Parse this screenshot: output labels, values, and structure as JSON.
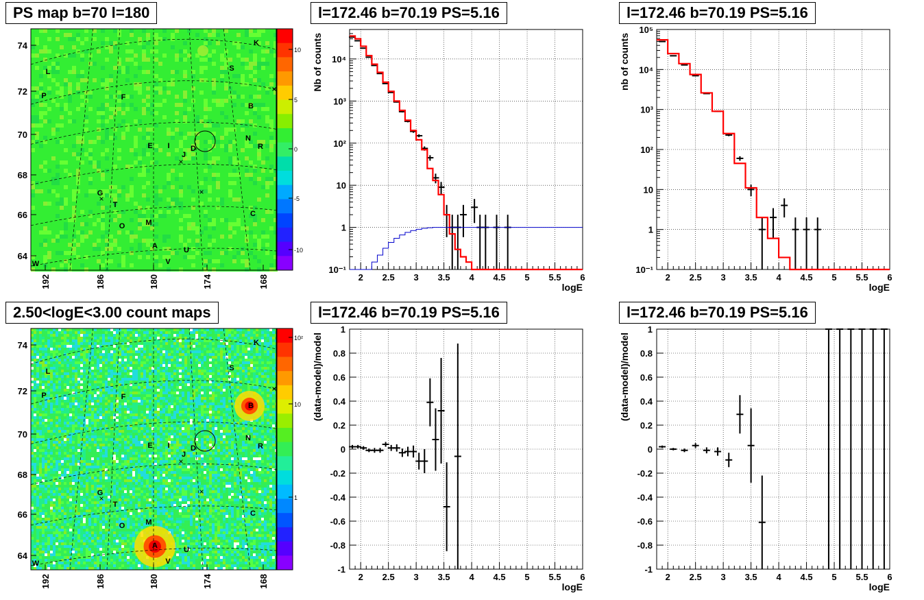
{
  "titles": {
    "ps_map": "PS map b=70 l=180",
    "count_map": "2.50<logE<3.00 count maps",
    "spec_left": "l=172.46 b=70.19 PS=5.16",
    "spec_right": "l=172.46 b=70.19 PS=5.16",
    "resid_left": "l=172.46 b=70.19 PS=5.16",
    "resid_right": "l=172.46 b=70.19 PS=5.16"
  },
  "map_axes": {
    "lat_ticks": [
      "64",
      "66",
      "68",
      "70",
      "72",
      "74"
    ],
    "lon_ticks": [
      "192",
      "186",
      "180",
      "174",
      "168"
    ],
    "ps_colorbar_ticks": [
      "10",
      "5",
      "0",
      "-5",
      "-10"
    ],
    "count_colorbar_ticks": [
      "10²",
      "10",
      "1"
    ]
  },
  "map_labels": [
    "K",
    "L",
    "S",
    "P",
    "F",
    "B",
    "N",
    "R",
    "E",
    "I",
    "J",
    "D",
    "G",
    "T",
    "C",
    "O",
    "M",
    "A",
    "U",
    "V",
    "W"
  ],
  "colors": {
    "data": "#000000",
    "model": "#ff0000",
    "aux": "#0000cc",
    "map_bg": "#33dd33",
    "source_hot": "#ff2200"
  },
  "chart_data": [
    {
      "type": "line",
      "panel": "spectrum-left",
      "title": "l=172.46 b=70.19 PS=5.16",
      "xlabel": "logE",
      "ylabel": "Nb of counts",
      "xlim": [
        1.8,
        6
      ],
      "ylim": [
        0.1,
        50000
      ],
      "yscale": "log",
      "x_ticks": [
        "2",
        "2.5",
        "3",
        "3.5",
        "4",
        "4.5",
        "5",
        "5.5",
        "6"
      ],
      "y_ticks": [
        "10⁻¹",
        "1",
        "10",
        "10²",
        "10³",
        "10⁴"
      ],
      "grid": true,
      "series": [
        {
          "kind": "data",
          "x": [
            1.85,
            1.95,
            2.05,
            2.15,
            2.25,
            2.35,
            2.45,
            2.55,
            2.65,
            2.75,
            2.85,
            2.95,
            3.05,
            3.15,
            3.25,
            3.35,
            3.45,
            3.55,
            3.65,
            3.75,
            3.85,
            4.05,
            4.15,
            4.25,
            4.45,
            4.65
          ],
          "y": [
            33000,
            27000,
            18000,
            11000,
            7000,
            4500,
            2600,
            1600,
            950,
            560,
            330,
            190,
            150,
            75,
            45,
            15,
            9,
            2,
            1,
            1,
            2,
            3,
            1,
            1,
            1,
            1
          ]
        },
        {
          "kind": "model",
          "x": [
            1.8,
            1.9,
            2.0,
            2.1,
            2.2,
            2.3,
            2.4,
            2.5,
            2.6,
            2.7,
            2.8,
            2.9,
            3.0,
            3.1,
            3.2,
            3.3,
            3.4,
            3.5,
            3.6,
            3.7,
            3.8,
            3.9,
            4.0,
            4.1,
            6.0
          ],
          "y": [
            35000,
            30000,
            20000,
            12000,
            7500,
            4800,
            2800,
            1700,
            1000,
            600,
            350,
            200,
            120,
            70,
            25,
            13,
            6,
            2,
            0.7,
            0.3,
            0.2,
            0.15,
            0.1,
            0.1,
            0.1
          ]
        },
        {
          "kind": "aux",
          "x": [
            1.8,
            2.1,
            2.2,
            2.3,
            2.4,
            2.5,
            2.6,
            2.7,
            2.8,
            2.9,
            3.0,
            3.1,
            3.2,
            3.3,
            3.5,
            4.0,
            6.0
          ],
          "y": [
            0.1,
            0.1,
            0.15,
            0.22,
            0.32,
            0.44,
            0.55,
            0.66,
            0.76,
            0.84,
            0.9,
            0.95,
            0.98,
            1.0,
            1.0,
            1.0,
            1.0
          ]
        }
      ]
    },
    {
      "type": "line",
      "panel": "spectrum-right",
      "title": "l=172.46 b=70.19 PS=5.16",
      "xlabel": "logE",
      "ylabel": "nb of counts",
      "xlim": [
        1.8,
        6
      ],
      "ylim": [
        0.1,
        100000
      ],
      "yscale": "log",
      "x_ticks": [
        "2",
        "2.5",
        "3",
        "3.5",
        "4",
        "4.5",
        "5",
        "5.5",
        "6"
      ],
      "y_ticks": [
        "10⁻¹",
        "1",
        "10",
        "10²",
        "10³",
        "10⁴",
        "10⁵"
      ],
      "grid": true,
      "series": [
        {
          "kind": "data",
          "x": [
            1.9,
            2.1,
            2.3,
            2.5,
            2.7,
            2.9,
            3.1,
            3.3,
            3.5,
            3.7,
            3.9,
            4.1,
            4.3,
            4.5,
            4.7
          ],
          "y": [
            50000,
            22000,
            13000,
            7000,
            2500,
            900,
            230,
            60,
            10,
            1,
            2,
            4,
            1,
            1,
            1
          ]
        },
        {
          "kind": "model",
          "x": [
            1.8,
            2.0,
            2.2,
            2.4,
            2.6,
            2.8,
            3.0,
            3.2,
            3.4,
            3.6,
            3.8,
            4.0,
            4.2,
            6.0
          ],
          "y": [
            55000,
            25000,
            14000,
            7500,
            2600,
            900,
            250,
            45,
            11,
            2,
            0.6,
            0.2,
            0.1,
            0.1
          ]
        }
      ]
    },
    {
      "type": "scatter",
      "panel": "residual-left",
      "title": "l=172.46 b=70.19 PS=5.16",
      "xlabel": "logE",
      "ylabel": "(data-model)/model",
      "xlim": [
        1.8,
        6
      ],
      "ylim": [
        -1,
        1
      ],
      "x_ticks": [
        "2",
        "2.5",
        "3",
        "3.5",
        "4",
        "4.5",
        "5",
        "5.5",
        "6"
      ],
      "y_ticks": [
        "-1",
        "-0.8",
        "-0.6",
        "-0.4",
        "-0.2",
        "0",
        "0.2",
        "0.4",
        "0.6",
        "0.8",
        "1"
      ],
      "grid": true,
      "points": [
        {
          "x": 1.85,
          "y": 0.02,
          "e": 0.015
        },
        {
          "x": 1.95,
          "y": 0.02,
          "e": 0.015
        },
        {
          "x": 2.05,
          "y": 0.01,
          "e": 0.015
        },
        {
          "x": 2.15,
          "y": -0.01,
          "e": 0.015
        },
        {
          "x": 2.25,
          "y": -0.01,
          "e": 0.02
        },
        {
          "x": 2.35,
          "y": -0.01,
          "e": 0.02
        },
        {
          "x": 2.45,
          "y": 0.04,
          "e": 0.02
        },
        {
          "x": 2.55,
          "y": 0.01,
          "e": 0.025
        },
        {
          "x": 2.65,
          "y": 0.01,
          "e": 0.03
        },
        {
          "x": 2.75,
          "y": -0.03,
          "e": 0.035
        },
        {
          "x": 2.85,
          "y": -0.02,
          "e": 0.04
        },
        {
          "x": 2.95,
          "y": -0.02,
          "e": 0.05
        },
        {
          "x": 3.05,
          "y": -0.1,
          "e": 0.07
        },
        {
          "x": 3.15,
          "y": -0.1,
          "e": 0.1
        },
        {
          "x": 3.25,
          "y": 0.39,
          "e": 0.2
        },
        {
          "x": 3.35,
          "y": 0.08,
          "e": 0.26
        },
        {
          "x": 3.45,
          "y": 0.32,
          "e": 0.44
        },
        {
          "x": 3.55,
          "y": -0.48,
          "e": 0.37
        },
        {
          "x": 3.75,
          "y": -0.06,
          "e": 0.94
        }
      ]
    },
    {
      "type": "scatter",
      "panel": "residual-right",
      "title": "l=172.46 b=70.19 PS=5.16",
      "xlabel": "logE",
      "ylabel": "(data-model)/model",
      "xlim": [
        1.8,
        6
      ],
      "ylim": [
        -1,
        1
      ],
      "x_ticks": [
        "2",
        "2.5",
        "3",
        "3.5",
        "4",
        "4.5",
        "5",
        "5.5",
        "6"
      ],
      "y_ticks": [
        "-1",
        "-0.8",
        "-0.6",
        "-0.4",
        "-0.2",
        "0",
        "0.2",
        "0.4",
        "0.6",
        "0.8",
        "1"
      ],
      "grid": true,
      "points": [
        {
          "x": 1.9,
          "y": 0.02,
          "e": 0.01
        },
        {
          "x": 2.1,
          "y": 0.0,
          "e": 0.01
        },
        {
          "x": 2.3,
          "y": -0.01,
          "e": 0.015
        },
        {
          "x": 2.5,
          "y": 0.03,
          "e": 0.02
        },
        {
          "x": 2.7,
          "y": -0.01,
          "e": 0.025
        },
        {
          "x": 2.9,
          "y": -0.02,
          "e": 0.035
        },
        {
          "x": 3.1,
          "y": -0.09,
          "e": 0.06
        },
        {
          "x": 3.3,
          "y": 0.29,
          "e": 0.16
        },
        {
          "x": 3.5,
          "y": 0.03,
          "e": 0.31
        },
        {
          "x": 3.7,
          "y": -0.61,
          "e": 0.39
        },
        {
          "x": 4.9,
          "y": 1.0,
          "e": 2.0
        },
        {
          "x": 5.1,
          "y": 1.0,
          "e": 2.0
        },
        {
          "x": 5.3,
          "y": 1.0,
          "e": 2.0
        },
        {
          "x": 5.5,
          "y": 1.0,
          "e": 2.0
        },
        {
          "x": 5.7,
          "y": 1.0,
          "e": 2.0
        },
        {
          "x": 5.9,
          "y": 1.0,
          "e": 2.0
        }
      ]
    }
  ]
}
